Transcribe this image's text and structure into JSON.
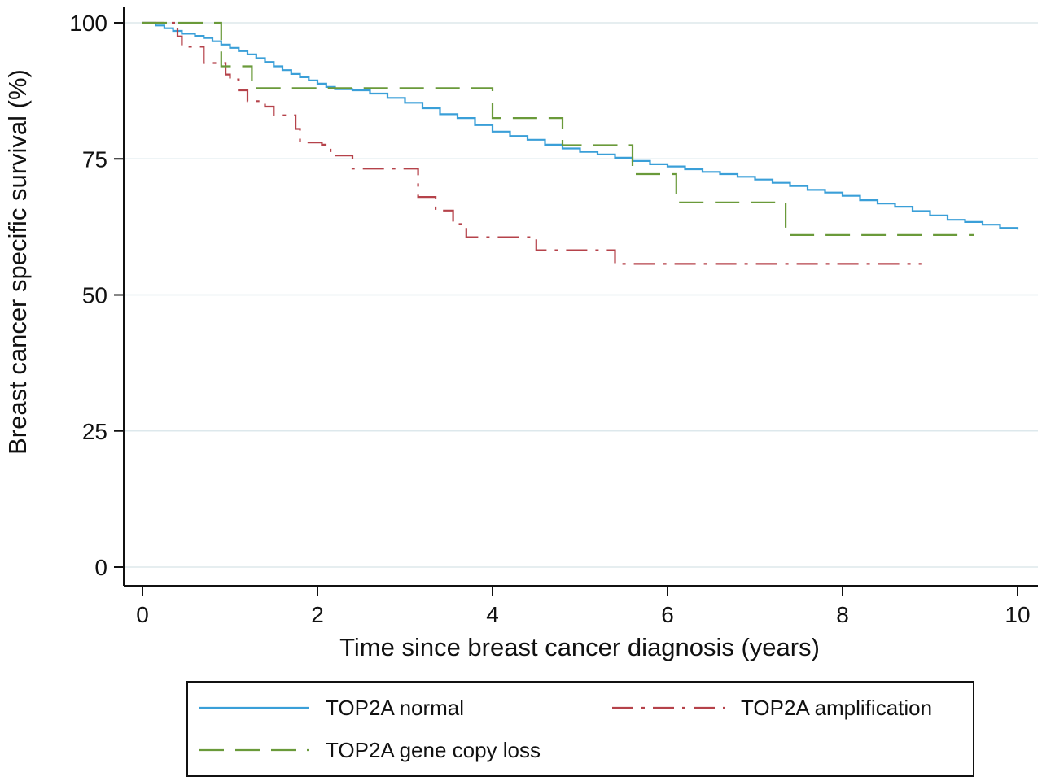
{
  "chart_data": {
    "type": "line",
    "step": true,
    "title": "",
    "xlabel": "Time since breast cancer diagnosis (years)",
    "ylabel": "Breast cancer specific survival (%)",
    "xlim": [
      0,
      10
    ],
    "ylim": [
      0,
      100
    ],
    "xticks": [
      0,
      2,
      4,
      6,
      8,
      10
    ],
    "yticks": [
      0,
      25,
      50,
      75,
      100
    ],
    "grid": "horizontal",
    "legend_position": "bottom",
    "series": [
      {
        "name": "TOP2A normal",
        "color": "#3a9fd8",
        "dash": "solid",
        "points": [
          [
            0,
            100
          ],
          [
            0.15,
            99.5
          ],
          [
            0.25,
            99
          ],
          [
            0.35,
            98.5
          ],
          [
            0.45,
            98
          ],
          [
            0.6,
            97.6
          ],
          [
            0.7,
            97.2
          ],
          [
            0.8,
            96.6
          ],
          [
            0.9,
            96
          ],
          [
            1.0,
            95.4
          ],
          [
            1.1,
            94.8
          ],
          [
            1.2,
            94.2
          ],
          [
            1.3,
            93.5
          ],
          [
            1.4,
            92.8
          ],
          [
            1.5,
            92
          ],
          [
            1.6,
            91.3
          ],
          [
            1.7,
            90.6
          ],
          [
            1.8,
            90
          ],
          [
            1.9,
            89.4
          ],
          [
            2.0,
            88.8
          ],
          [
            2.1,
            88.2
          ],
          [
            2.2,
            87.8
          ],
          [
            2.4,
            87.6
          ],
          [
            2.6,
            87
          ],
          [
            2.8,
            86.2
          ],
          [
            3.0,
            85.3
          ],
          [
            3.2,
            84.3
          ],
          [
            3.4,
            83.2
          ],
          [
            3.6,
            82.5
          ],
          [
            3.8,
            81.2
          ],
          [
            4.0,
            80
          ],
          [
            4.2,
            79.2
          ],
          [
            4.4,
            78.5
          ],
          [
            4.6,
            77.6
          ],
          [
            4.8,
            76.9
          ],
          [
            5.0,
            76.3
          ],
          [
            5.2,
            75.8
          ],
          [
            5.4,
            75.2
          ],
          [
            5.6,
            74.6
          ],
          [
            5.8,
            74
          ],
          [
            6.0,
            73.6
          ],
          [
            6.2,
            73.1
          ],
          [
            6.4,
            72.6
          ],
          [
            6.6,
            72.2
          ],
          [
            6.8,
            71.7
          ],
          [
            7.0,
            71.2
          ],
          [
            7.2,
            70.6
          ],
          [
            7.4,
            70
          ],
          [
            7.6,
            69.3
          ],
          [
            7.8,
            68.8
          ],
          [
            8.0,
            68.2
          ],
          [
            8.2,
            67.4
          ],
          [
            8.4,
            66.8
          ],
          [
            8.6,
            66.2
          ],
          [
            8.8,
            65.4
          ],
          [
            9.0,
            64.6
          ],
          [
            9.2,
            63.8
          ],
          [
            9.4,
            63.4
          ],
          [
            9.6,
            62.9
          ],
          [
            9.8,
            62.3
          ],
          [
            10.0,
            62.0
          ]
        ]
      },
      {
        "name": "TOP2A amplification",
        "color": "#b5424a",
        "dash": "dash-dot",
        "points": [
          [
            0,
            100
          ],
          [
            0.4,
            97.5
          ],
          [
            0.45,
            95.6
          ],
          [
            0.7,
            92.6
          ],
          [
            0.95,
            90.5
          ],
          [
            1.0,
            89.6
          ],
          [
            1.1,
            87.6
          ],
          [
            1.2,
            85.6
          ],
          [
            1.4,
            84.6
          ],
          [
            1.5,
            83
          ],
          [
            1.75,
            80.5
          ],
          [
            1.8,
            78
          ],
          [
            2.05,
            77.6
          ],
          [
            2.15,
            75.6
          ],
          [
            2.4,
            73.2
          ],
          [
            3.15,
            68
          ],
          [
            3.35,
            65.5
          ],
          [
            3.55,
            63
          ],
          [
            3.7,
            60.6
          ],
          [
            4.5,
            58.2
          ],
          [
            5.4,
            55.7
          ],
          [
            8.9,
            55.7
          ]
        ]
      },
      {
        "name": "TOP2A gene copy loss",
        "color": "#6a9a3a",
        "dash": "long-dash",
        "points": [
          [
            0,
            100
          ],
          [
            0.9,
            92
          ],
          [
            1.25,
            88
          ],
          [
            4.0,
            82.5
          ],
          [
            4.8,
            77.5
          ],
          [
            5.6,
            72.2
          ],
          [
            6.1,
            67
          ],
          [
            7.35,
            61
          ],
          [
            9.5,
            61
          ]
        ]
      }
    ]
  }
}
